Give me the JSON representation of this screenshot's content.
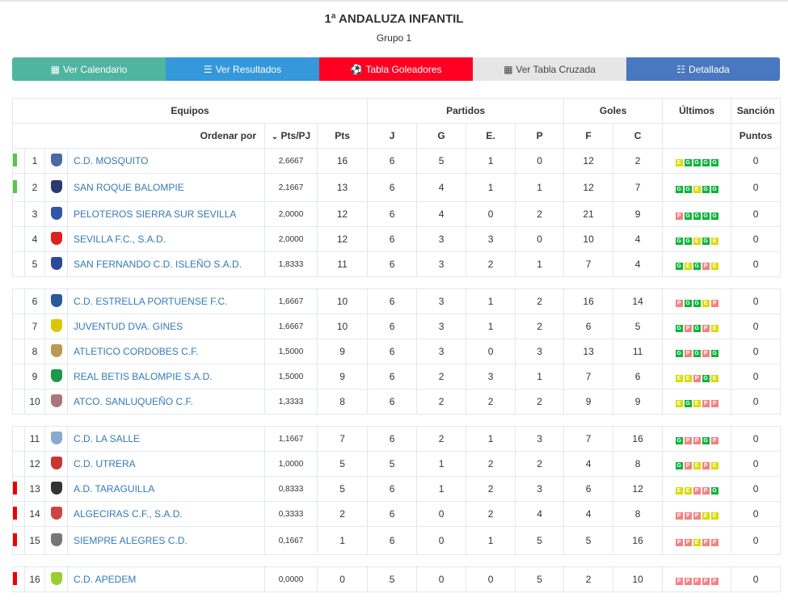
{
  "title": "1ª ANDALUZA INFANTIL",
  "subtitle": "Grupo 1",
  "buttons": [
    {
      "label": "Ver Calendario",
      "icon": "calendar-icon",
      "color": "#4fb5a0"
    },
    {
      "label": "Ver Resultados",
      "icon": "list-icon",
      "color": "#3498db"
    },
    {
      "label": "Tabla Goleadores",
      "icon": "soccer-ball-icon",
      "color": "#ff0022"
    },
    {
      "label": "Ver Tabla Cruzada",
      "icon": "calculator-icon",
      "color": "#e6e6e6"
    },
    {
      "label": "Detallada",
      "icon": "detail-icon",
      "color": "#4a78c0"
    }
  ],
  "headers": {
    "equipos": "Equipos",
    "partidos": "Partidos",
    "goles": "Goles",
    "ultimos": "Últimos",
    "sancion": "Sanción",
    "ordenar": "Ordenar por",
    "ptspj": "Pts/PJ",
    "pts": "Pts",
    "j": "J",
    "g": "G",
    "e": "E.",
    "p": "P",
    "f": "F",
    "c": "C",
    "puntos": "Puntos"
  },
  "result_colors": {
    "G": "#0cb33a",
    "E": "#d7dc00",
    "P": "#f38181"
  },
  "marker_colors": {
    "up": "#5bc24a",
    "down": "#ee0000"
  },
  "rows": [
    {
      "pos": "1",
      "team": "C.D. MOSQUITO",
      "ptspj": "2,6667",
      "pts": "16",
      "j": "6",
      "g": "5",
      "e": "1",
      "p": "0",
      "f": "12",
      "c": "2",
      "last": "EGGGG",
      "sancion": "0",
      "marker": "up",
      "crest": "#4a6ba0"
    },
    {
      "pos": "2",
      "team": "SAN ROQUE BALOMPIE",
      "ptspj": "2,1667",
      "pts": "13",
      "j": "6",
      "g": "4",
      "e": "1",
      "p": "1",
      "f": "12",
      "c": "7",
      "last": "GGEGG",
      "sancion": "0",
      "marker": "up",
      "crest": "#2a3a70"
    },
    {
      "pos": "3",
      "team": "PELOTEROS SIERRA SUR SEVILLA",
      "ptspj": "2,0000",
      "pts": "12",
      "j": "6",
      "g": "4",
      "e": "0",
      "p": "2",
      "f": "21",
      "c": "9",
      "last": "PGGGG",
      "sancion": "0",
      "marker": "",
      "crest": "#3355aa"
    },
    {
      "pos": "4",
      "team": "SEVILLA F.C., S.A.D.",
      "ptspj": "2,0000",
      "pts": "12",
      "j": "6",
      "g": "3",
      "e": "3",
      "p": "0",
      "f": "10",
      "c": "4",
      "last": "GGEGE",
      "sancion": "0",
      "marker": "",
      "crest": "#d22"
    },
    {
      "pos": "5",
      "team": "SAN FERNANDO C.D. ISLEÑO S.A.D.",
      "ptspj": "1,8333",
      "pts": "11",
      "j": "6",
      "g": "3",
      "e": "2",
      "p": "1",
      "f": "7",
      "c": "4",
      "last": "GEGPE",
      "sancion": "0",
      "marker": "",
      "crest": "#2a4a9a"
    },
    {
      "pos": "6",
      "team": "C.D. ESTRELLA PORTUENSE F.C.",
      "ptspj": "1,6667",
      "pts": "10",
      "j": "6",
      "g": "3",
      "e": "1",
      "p": "2",
      "f": "16",
      "c": "14",
      "last": "PGGEP",
      "sancion": "0",
      "marker": "",
      "crest": "#2a5a9a"
    },
    {
      "pos": "7",
      "team": "JUVENTUD DVA. GINES",
      "ptspj": "1,6667",
      "pts": "10",
      "j": "6",
      "g": "3",
      "e": "1",
      "p": "2",
      "f": "6",
      "c": "5",
      "last": "GPGPE",
      "sancion": "0",
      "marker": "",
      "crest": "#d8c800"
    },
    {
      "pos": "8",
      "team": "ATLETICO CORDOBES C.F.",
      "ptspj": "1,5000",
      "pts": "9",
      "j": "6",
      "g": "3",
      "e": "0",
      "p": "3",
      "f": "13",
      "c": "11",
      "last": "GPGPG",
      "sancion": "0",
      "marker": "",
      "crest": "#bb9a55"
    },
    {
      "pos": "9",
      "team": "REAL BETIS BALOMPIE S.A.D.",
      "ptspj": "1,5000",
      "pts": "9",
      "j": "6",
      "g": "2",
      "e": "3",
      "p": "1",
      "f": "7",
      "c": "6",
      "last": "EEPGE",
      "sancion": "0",
      "marker": "",
      "crest": "#1a9a4a"
    },
    {
      "pos": "10",
      "team": "ATCO. SANLUQUEÑO C.F.",
      "ptspj": "1,3333",
      "pts": "8",
      "j": "6",
      "g": "2",
      "e": "2",
      "p": "2",
      "f": "9",
      "c": "9",
      "last": "EGEPP",
      "sancion": "0",
      "marker": "",
      "crest": "#aa7777"
    },
    {
      "pos": "11",
      "team": "C.D. LA SALLE",
      "ptspj": "1,1667",
      "pts": "7",
      "j": "6",
      "g": "2",
      "e": "1",
      "p": "3",
      "f": "7",
      "c": "16",
      "last": "GPPGP",
      "sancion": "0",
      "marker": "",
      "crest": "#88aacc"
    },
    {
      "pos": "12",
      "team": "C.D. UTRERA",
      "ptspj": "1,0000",
      "pts": "5",
      "j": "5",
      "g": "1",
      "e": "2",
      "p": "2",
      "f": "4",
      "c": "8",
      "last": "GPEPE",
      "sancion": "0",
      "marker": "",
      "crest": "#cc3333"
    },
    {
      "pos": "13",
      "team": "A.D. TARAGUILLA",
      "ptspj": "0,8333",
      "pts": "5",
      "j": "6",
      "g": "1",
      "e": "2",
      "p": "3",
      "f": "6",
      "c": "12",
      "last": "EEPPG",
      "sancion": "0",
      "marker": "down",
      "crest": "#333"
    },
    {
      "pos": "14",
      "team": "ALGECIRAS C.F., S.A.D.",
      "ptspj": "0,3333",
      "pts": "2",
      "j": "6",
      "g": "0",
      "e": "2",
      "p": "4",
      "f": "4",
      "c": "8",
      "last": "PPPEE",
      "sancion": "0",
      "marker": "down",
      "crest": "#cc4444"
    },
    {
      "pos": "15",
      "team": "SIEMPRE ALEGRES C.D.",
      "ptspj": "0,1667",
      "pts": "1",
      "j": "6",
      "g": "0",
      "e": "1",
      "p": "5",
      "f": "5",
      "c": "16",
      "last": "PPEPP",
      "sancion": "0",
      "marker": "down",
      "crest": "#777"
    },
    {
      "pos": "16",
      "team": "C.D. APEDEM",
      "ptspj": "0,0000",
      "pts": "0",
      "j": "5",
      "g": "0",
      "e": "0",
      "p": "5",
      "f": "2",
      "c": "10",
      "last": "PPPPP",
      "sancion": "0",
      "marker": "down",
      "crest": "#9acd32"
    }
  ]
}
